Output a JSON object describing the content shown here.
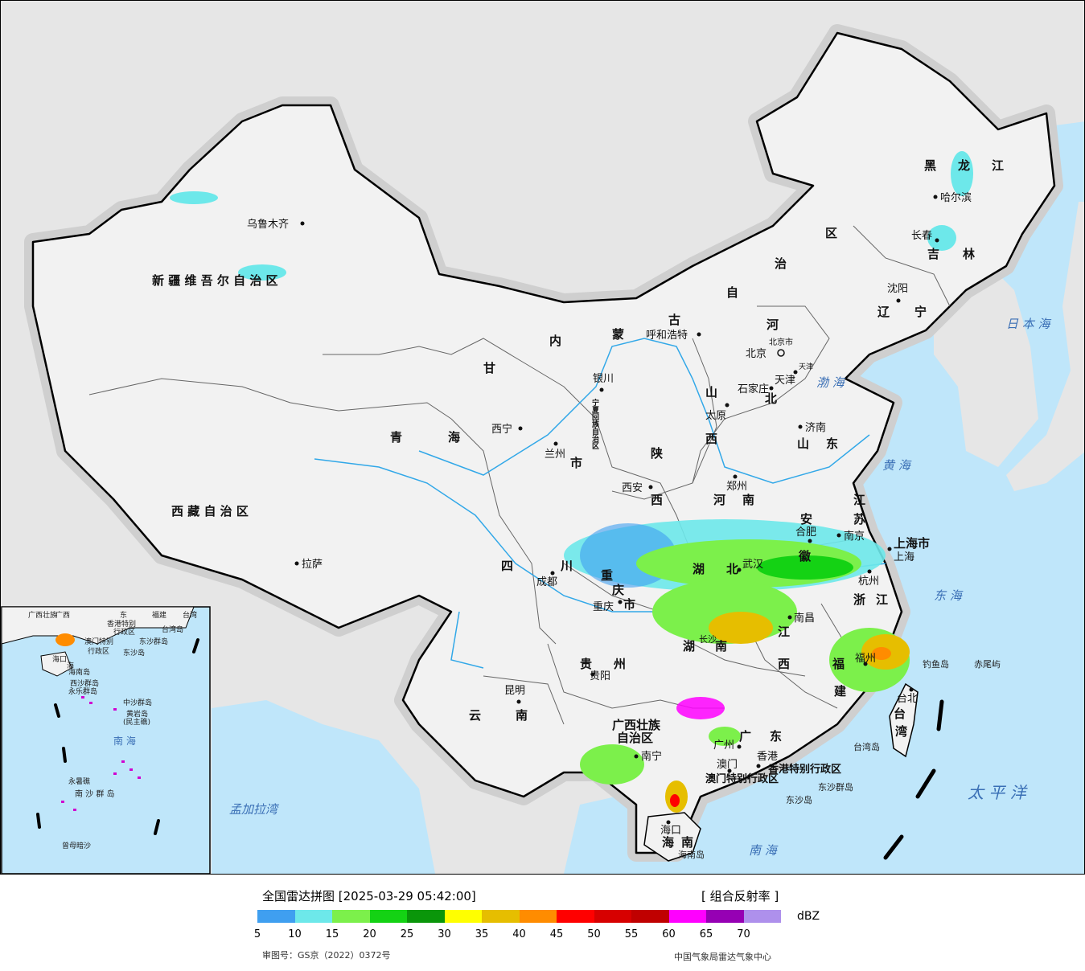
{
  "map": {
    "colors": {
      "ocean": "#bfe6fa",
      "land_cn": "#f2f2f2",
      "land_other": "#e6e6e6",
      "border": "#000000",
      "river": "#32a8e8"
    },
    "provinces": [
      {
        "name": "新 疆 维 吾 尔 自 治 区"
      },
      {
        "name": "西 藏 自 治 区"
      },
      {
        "name": "青"
      },
      {
        "name": "海"
      },
      {
        "name": "甘"
      },
      {
        "name": "内"
      },
      {
        "name": "蒙"
      },
      {
        "name": "古"
      },
      {
        "name": "自"
      },
      {
        "name": "治"
      },
      {
        "name": "区"
      },
      {
        "name": "黑"
      },
      {
        "name": "龙"
      },
      {
        "name": "江"
      },
      {
        "name": "吉"
      },
      {
        "name": "林"
      },
      {
        "name": "辽"
      },
      {
        "name": "宁"
      },
      {
        "name": "河"
      },
      {
        "name": "北"
      },
      {
        "name": "山"
      },
      {
        "name": "西"
      },
      {
        "name": "山"
      },
      {
        "name": "东"
      },
      {
        "name": "陕"
      },
      {
        "name": "西"
      },
      {
        "name": "河"
      },
      {
        "name": "南"
      },
      {
        "name": "江"
      },
      {
        "name": "苏"
      },
      {
        "name": "安"
      },
      {
        "name": "徽"
      },
      {
        "name": "上海市"
      },
      {
        "name": "浙"
      },
      {
        "name": "江"
      },
      {
        "name": "四"
      },
      {
        "name": "川"
      },
      {
        "name": "重"
      },
      {
        "name": "庆"
      },
      {
        "name": "市"
      },
      {
        "name": "湖"
      },
      {
        "name": "北"
      },
      {
        "name": "湖"
      },
      {
        "name": "南"
      },
      {
        "name": "江"
      },
      {
        "name": "西"
      },
      {
        "name": "福"
      },
      {
        "name": "建"
      },
      {
        "name": "贵"
      },
      {
        "name": "州"
      },
      {
        "name": "云"
      },
      {
        "name": "南"
      },
      {
        "name": "广西壮族"
      },
      {
        "name": "自治区"
      },
      {
        "name": "广"
      },
      {
        "name": "东"
      },
      {
        "name": "海"
      },
      {
        "name": "南"
      },
      {
        "name": "台"
      },
      {
        "name": "湾"
      },
      {
        "name": "香港特别行政区"
      },
      {
        "name": "澳门特别行政区"
      },
      {
        "name": "市"
      },
      {
        "name": "宁夏回族自治区"
      }
    ],
    "cities": [
      {
        "name": "乌鲁木齐"
      },
      {
        "name": "拉萨"
      },
      {
        "name": "西宁"
      },
      {
        "name": "兰州"
      },
      {
        "name": "银川"
      },
      {
        "name": "呼和浩特"
      },
      {
        "name": "北京"
      },
      {
        "name": "北京市"
      },
      {
        "name": "天津"
      },
      {
        "name": "天津"
      },
      {
        "name": "石家庄"
      },
      {
        "name": "太原"
      },
      {
        "name": "济南"
      },
      {
        "name": "郑州"
      },
      {
        "name": "西安"
      },
      {
        "name": "合肥"
      },
      {
        "name": "南京"
      },
      {
        "name": "上海"
      },
      {
        "name": "杭州"
      },
      {
        "name": "武汉"
      },
      {
        "name": "南昌"
      },
      {
        "name": "长沙"
      },
      {
        "name": "福州"
      },
      {
        "name": "台北"
      },
      {
        "name": "成都"
      },
      {
        "name": "重庆"
      },
      {
        "name": "贵阳"
      },
      {
        "name": "昆明"
      },
      {
        "name": "南宁"
      },
      {
        "name": "广州"
      },
      {
        "name": "香港"
      },
      {
        "name": "澳门"
      },
      {
        "name": "海口"
      },
      {
        "name": "哈尔滨"
      },
      {
        "name": "长春"
      },
      {
        "name": "沈阳"
      }
    ],
    "seas": [
      {
        "name": "日 本 海"
      },
      {
        "name": "渤 海"
      },
      {
        "name": "黄 海"
      },
      {
        "name": "东 海"
      },
      {
        "name": "太 平 洋"
      },
      {
        "name": "南 海"
      },
      {
        "name": "孟加拉湾"
      }
    ],
    "islands": [
      {
        "name": "钓鱼岛"
      },
      {
        "name": "赤尾屿"
      },
      {
        "name": "台湾岛"
      },
      {
        "name": "东沙群岛"
      },
      {
        "name": "东沙岛"
      },
      {
        "name": "海南岛"
      }
    ],
    "inset": {
      "labels": [
        "广西壮族",
        "香港特别",
        "行政区",
        "澳门特别",
        "行政区",
        "台湾",
        "台湾岛",
        "东沙群岛",
        "东沙岛",
        "海口",
        "海南岛",
        "西沙群岛",
        "永乐群岛",
        "中沙群岛",
        "黄岩岛",
        "(民主礁)",
        "南 海",
        "永暑礁",
        "南 沙 群 岛",
        "曾母暗沙",
        "广西",
        "海",
        "东",
        "福建"
      ]
    }
  },
  "legend": {
    "title": "全国雷达拼图 [2025-03-29 05:42:00]",
    "product": "[ 组合反射率 ]",
    "unit": "dBZ",
    "colors": [
      "#3f9ff0",
      "#6de8ea",
      "#7cf04b",
      "#14d214",
      "#0a960a",
      "#ffff00",
      "#e6be00",
      "#ff8c00",
      "#ff0000",
      "#d70000",
      "#c00000",
      "#ff00ff",
      "#9600b4",
      "#ae90ec"
    ],
    "ticks": [
      "5",
      "10",
      "15",
      "20",
      "25",
      "30",
      "35",
      "40",
      "45",
      "50",
      "55",
      "60",
      "65",
      "70"
    ],
    "approval": "审图号：GS京（2022）0372号",
    "agency": "中国气象局雷达气象中心"
  }
}
